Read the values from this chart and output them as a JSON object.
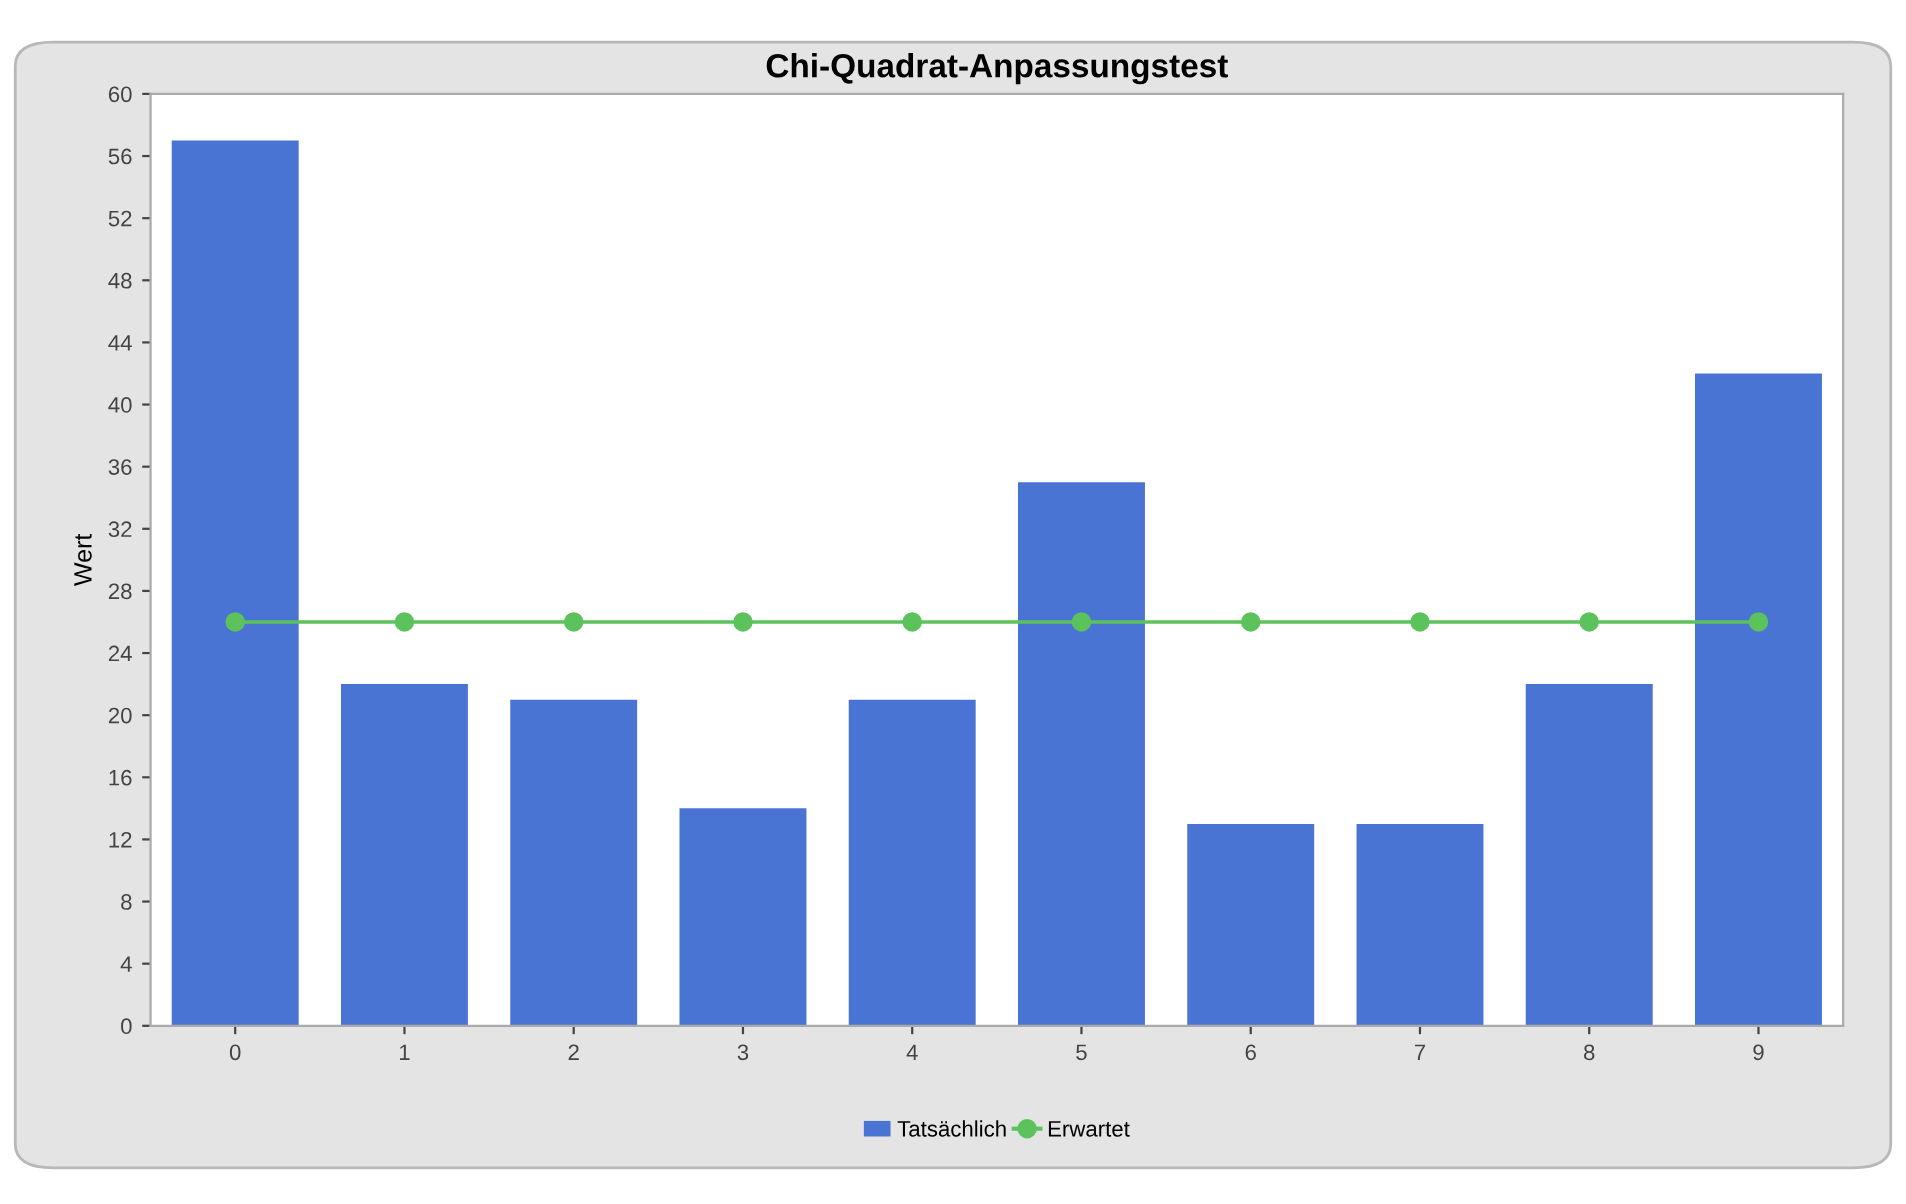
{
  "chart_data": {
    "type": "bar",
    "title": "Chi-Quadrat-Anpassungstest",
    "ylabel": "Wert",
    "categories": [
      "0",
      "1",
      "2",
      "3",
      "4",
      "5",
      "6",
      "7",
      "8",
      "9"
    ],
    "series": [
      {
        "name": "Tatsächlich",
        "color": "#4a74d4",
        "values": [
          57,
          22,
          21,
          14,
          21,
          35,
          13,
          13,
          22,
          42
        ]
      },
      {
        "name": "Erwartet",
        "type": "line",
        "color": "#5cc25c",
        "marker": "circle",
        "values": [
          26,
          26,
          26,
          26,
          26,
          26,
          26,
          26,
          26,
          26
        ]
      }
    ],
    "ylim": [
      0,
      60
    ],
    "yticks": [
      0,
      4,
      8,
      12,
      16,
      20,
      24,
      28,
      32,
      36,
      40,
      44,
      48,
      52,
      56,
      60
    ],
    "grid": false,
    "legend": "bottom"
  }
}
